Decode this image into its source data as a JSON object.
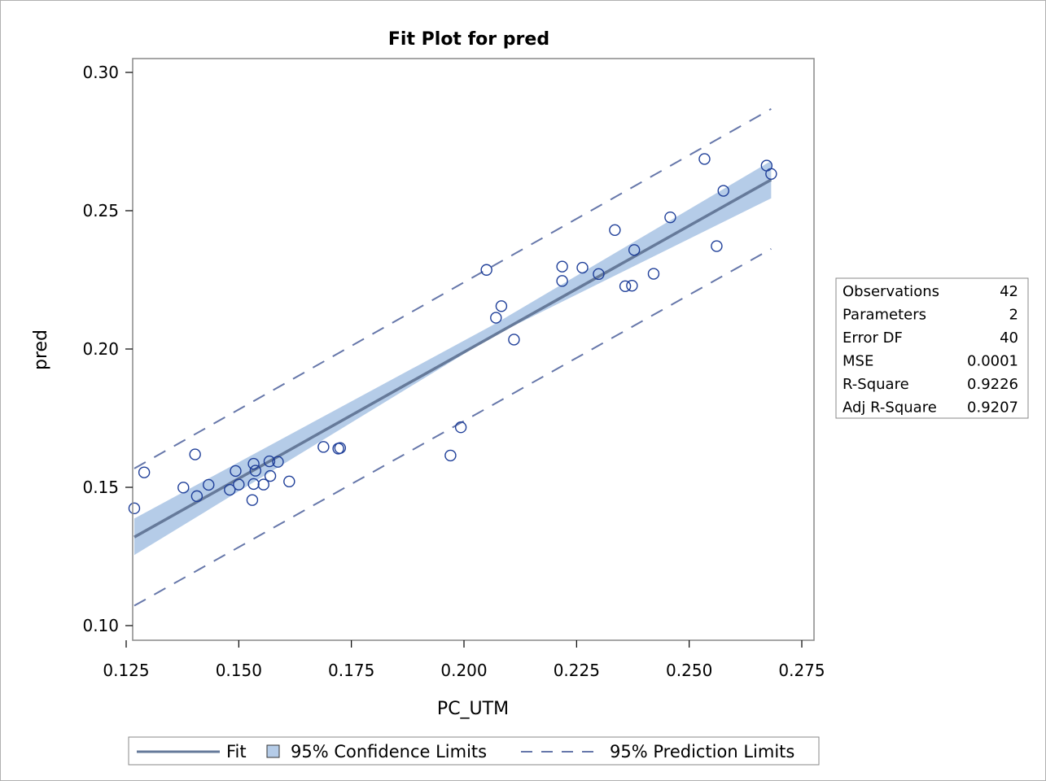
{
  "chart_data": {
    "type": "scatter",
    "title": "Fit Plot for pred",
    "xlabel": "PC_UTM",
    "ylabel": "pred",
    "xlim": [
      0.125,
      0.275
    ],
    "ylim": [
      0.1,
      0.3
    ],
    "xticks": [
      "0.125",
      "0.150",
      "0.175",
      "0.200",
      "0.225",
      "0.250",
      "0.275"
    ],
    "xtick_values": [
      0.125,
      0.15,
      0.175,
      0.2,
      0.225,
      0.25,
      0.275
    ],
    "yticks": [
      "0.10",
      "0.15",
      "0.20",
      "0.25",
      "0.30"
    ],
    "ytick_values": [
      0.1,
      0.15,
      0.2,
      0.25,
      0.3
    ],
    "points": {
      "x": [
        0.1268,
        0.129,
        0.1377,
        0.1403,
        0.1407,
        0.1433,
        0.148,
        0.1493,
        0.15,
        0.153,
        0.1533,
        0.1533,
        0.1537,
        0.1555,
        0.1568,
        0.157,
        0.1587,
        0.1612,
        0.1688,
        0.1721,
        0.1725,
        0.197,
        0.1993,
        0.205,
        0.2071,
        0.2083,
        0.2111,
        0.2218,
        0.2218,
        0.2263,
        0.2299,
        0.2335,
        0.2358,
        0.2373,
        0.2378,
        0.2421,
        0.2458,
        0.2534,
        0.2561,
        0.2576,
        0.2672,
        0.2682
      ],
      "y": [
        0.1424,
        0.1554,
        0.1499,
        0.1619,
        0.1468,
        0.1509,
        0.1491,
        0.1559,
        0.151,
        0.1454,
        0.1585,
        0.1512,
        0.156,
        0.151,
        0.1594,
        0.1541,
        0.1592,
        0.1521,
        0.1646,
        0.164,
        0.1642,
        0.1615,
        0.1717,
        0.2286,
        0.2113,
        0.2155,
        0.2034,
        0.2298,
        0.2246,
        0.2294,
        0.2271,
        0.243,
        0.2227,
        0.2229,
        0.2358,
        0.2272,
        0.2476,
        0.2687,
        0.2372,
        0.2572,
        0.2663,
        0.2633
      ]
    },
    "fit": {
      "x": [
        0.1268,
        0.2682
      ],
      "y": [
        0.132,
        0.2612
      ]
    },
    "confidence_band": {
      "x": [
        0.1268,
        0.2068,
        0.2682
      ],
      "lower": [
        0.1255,
        0.205,
        0.2545
      ],
      "upper": [
        0.1387,
        0.209,
        0.268
      ]
    },
    "prediction_band": {
      "x": [
        0.1268,
        0.2682
      ],
      "lower": [
        0.1072,
        0.2362
      ],
      "upper": [
        0.1568,
        0.2868
      ]
    },
    "stats": [
      {
        "label": "Observations",
        "value": "42"
      },
      {
        "label": "Parameters",
        "value": "2"
      },
      {
        "label": "Error DF",
        "value": "40"
      },
      {
        "label": "MSE",
        "value": "0.0001"
      },
      {
        "label": "R-Square",
        "value": "0.9226"
      },
      {
        "label": "Adj R-Square",
        "value": "0.9207"
      }
    ],
    "legend": {
      "fit_label": "Fit",
      "confidence_label": "95% Confidence Limits",
      "prediction_label": "95% Prediction Limits",
      "placement": "bottom"
    },
    "colors": {
      "fit_line": "#667a9a",
      "confidence_fill": "#b5cce8",
      "prediction_line": "#6677aa",
      "marker": "#1f3f99",
      "axis": "#888888"
    }
  }
}
